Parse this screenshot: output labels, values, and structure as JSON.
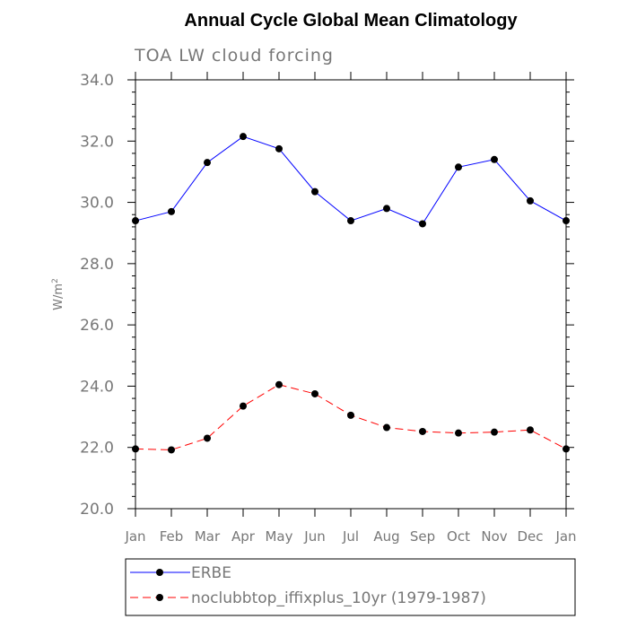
{
  "chart_data": {
    "type": "line",
    "title": "Annual Cycle Global Mean Climatology",
    "subtitle": "TOA LW cloud forcing",
    "ylabel": "W/m",
    "ylabel_sup": "2",
    "xlabel": "",
    "ylim": [
      20.0,
      34.0
    ],
    "yticks": [
      20.0,
      22.0,
      24.0,
      26.0,
      28.0,
      30.0,
      32.0,
      34.0
    ],
    "ytick_labels": [
      "20.0",
      "22.0",
      "24.0",
      "26.0",
      "28.0",
      "30.0",
      "32.0",
      "34.0"
    ],
    "categories": [
      "Jan",
      "Feb",
      "Mar",
      "Apr",
      "May",
      "Jun",
      "Jul",
      "Aug",
      "Sep",
      "Oct",
      "Nov",
      "Dec",
      "Jan"
    ],
    "series": [
      {
        "name": "ERBE",
        "color": "#0000ff",
        "style": "solid",
        "values": [
          29.4,
          29.7,
          31.3,
          32.15,
          31.75,
          30.35,
          29.4,
          29.8,
          29.3,
          31.15,
          31.4,
          30.05,
          29.4
        ]
      },
      {
        "name": "noclubbtop_iffixplus_10yr (1979-1987)",
        "color": "#ff0000",
        "style": "dashed",
        "values": [
          21.95,
          21.92,
          22.3,
          23.35,
          24.05,
          23.75,
          23.05,
          22.65,
          22.52,
          22.47,
          22.5,
          22.57,
          21.95
        ]
      }
    ],
    "legend_position": "bottom"
  }
}
